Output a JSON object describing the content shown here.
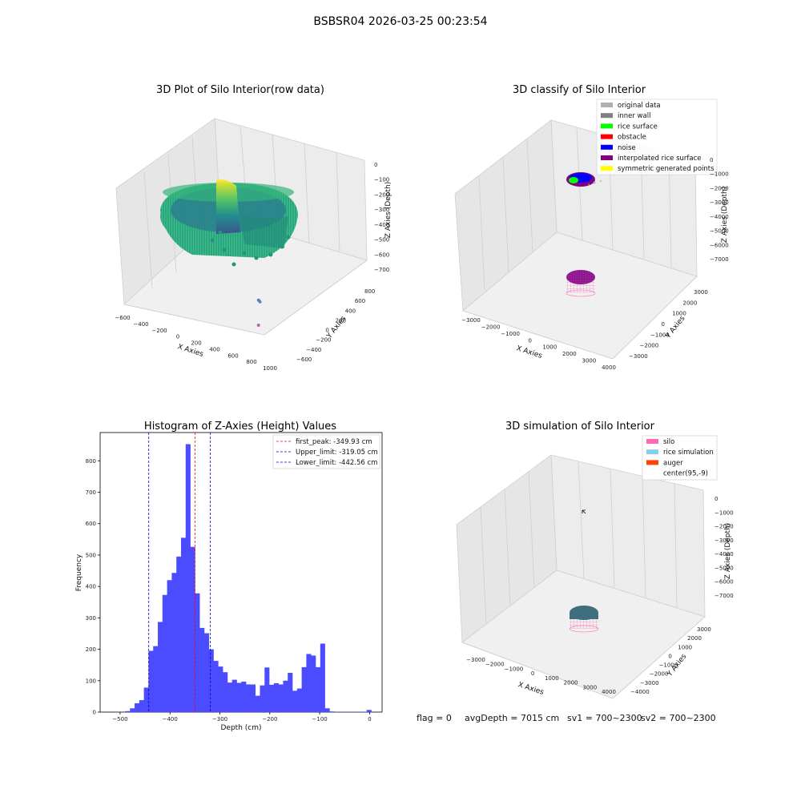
{
  "figure": {
    "suptitle": "BSBSR04 2026-03-25 00:23:54",
    "footer": {
      "flag": "flag = 0",
      "avg_depth": "avgDepth = 7015 cm",
      "sv1": "sv1 = 700~2300",
      "sv2": "sv2 = 700~2300"
    }
  },
  "colors": {
    "histogram_bar": "#4b4bff",
    "first_peak_line": "#ff0000",
    "limit_line": "#0000cc",
    "original_data": "#b0b0b0",
    "inner_wall": "#808080",
    "rice_surface": "#00ff00",
    "obstacle": "#ff0000",
    "noise": "#0000ff",
    "interpolated_rice_surface": "#800080",
    "symmetric_generated_points": "#ffff00",
    "silo": "#ff69b4",
    "rice_simulation": "#87ceeb",
    "auger": "#ff4500"
  },
  "chart_data": [
    {
      "type": "scatter",
      "projection": "3d",
      "title": "3D Plot of Silo Interior(row data)",
      "xlabel": "X Axies",
      "ylabel": "Y Axies",
      "zlabel": "Z Axies (Depth)",
      "xticks": [
        "−600",
        "−400",
        "−200",
        "0",
        "200",
        "400",
        "600",
        "800",
        "1000"
      ],
      "yticks": [
        "−600",
        "−400",
        "−200",
        "0",
        "200",
        "400",
        "600",
        "800"
      ],
      "zticks": [
        "0",
        "−100",
        "−200",
        "−300",
        "−400",
        "−500",
        "−600",
        "−700"
      ],
      "xlim": [
        -600,
        1000
      ],
      "ylim": [
        -600,
        800
      ],
      "zlim": [
        -700,
        0
      ],
      "colormap": "viridis",
      "outlier_points": [
        {
          "x": 850,
          "y": -500,
          "z": -690
        },
        {
          "x": 700,
          "y": -300,
          "z": -620
        },
        {
          "x": 600,
          "y": -200,
          "z": -660
        }
      ]
    },
    {
      "type": "scatter",
      "projection": "3d",
      "title": "3D classify of Silo Interior",
      "xlabel": "X Axies",
      "ylabel": "Y Axies",
      "zlabel": "Z Axies (Depth)",
      "xticks": [
        "−3000",
        "−2000",
        "−1000",
        "0",
        "1000",
        "2000",
        "3000",
        "4000"
      ],
      "yticks": [
        "−3000",
        "−2000",
        "−1000",
        "0",
        "1000",
        "2000",
        "3000"
      ],
      "zticks": [
        "0",
        "−1000",
        "−2000",
        "−3000",
        "−4000",
        "−5000",
        "−6000",
        "−7000"
      ],
      "xlim": [
        -3000,
        4000
      ],
      "ylim": [
        -3000,
        3000
      ],
      "zlim": [
        -7000,
        0
      ],
      "legend_position": "top-right",
      "legend": [
        {
          "label": "original data",
          "color": "#b0b0b0"
        },
        {
          "label": "inner wall",
          "color": "#808080"
        },
        {
          "label": "rice surface",
          "color": "#00ff00"
        },
        {
          "label": "obstacle",
          "color": "#ff0000"
        },
        {
          "label": "noise",
          "color": "#0000ff"
        },
        {
          "label": "interpolated rice surface",
          "color": "#800080"
        },
        {
          "label": "symmetric generated points",
          "color": "#ffff00"
        }
      ]
    },
    {
      "type": "bar",
      "title": "Histogram of Z-Axies (Height) Values",
      "xlabel": "Depth (cm)",
      "ylabel": "Frequency",
      "xlim": [
        -540,
        25
      ],
      "ylim": [
        0,
        890
      ],
      "xticks": [
        -500,
        -400,
        -300,
        -200,
        -100,
        0
      ],
      "yticks": [
        0,
        100,
        200,
        300,
        400,
        500,
        600,
        700,
        800
      ],
      "xtick_labels": [
        "−500",
        "−400",
        "−300",
        "−200",
        "−100",
        "0"
      ],
      "bin_width": 9.3,
      "bins": [
        [
          -489.5,
          3
        ],
        [
          -480.2,
          12
        ],
        [
          -470.9,
          28
        ],
        [
          -461.6,
          38
        ],
        [
          -452.3,
          78
        ],
        [
          -443.0,
          195
        ],
        [
          -433.7,
          210
        ],
        [
          -424.4,
          287
        ],
        [
          -415.1,
          373
        ],
        [
          -405.8,
          420
        ],
        [
          -396.5,
          443
        ],
        [
          -387.2,
          495
        ],
        [
          -377.9,
          555
        ],
        [
          -368.6,
          853
        ],
        [
          -359.3,
          526
        ],
        [
          -350.0,
          378
        ],
        [
          -340.7,
          268
        ],
        [
          -331.4,
          251
        ],
        [
          -322.1,
          200
        ],
        [
          -312.8,
          163
        ],
        [
          -303.5,
          145
        ],
        [
          -294.2,
          127
        ],
        [
          -284.9,
          94
        ],
        [
          -275.6,
          103
        ],
        [
          -266.3,
          93
        ],
        [
          -257.0,
          97
        ],
        [
          -247.7,
          88
        ],
        [
          -238.4,
          88
        ],
        [
          -229.1,
          52
        ],
        [
          -219.8,
          85
        ],
        [
          -210.5,
          142
        ],
        [
          -201.2,
          87
        ],
        [
          -191.9,
          92
        ],
        [
          -182.6,
          88
        ],
        [
          -173.3,
          100
        ],
        [
          -164.0,
          125
        ],
        [
          -154.7,
          68
        ],
        [
          -145.4,
          75
        ],
        [
          -136.1,
          143
        ],
        [
          -126.8,
          185
        ],
        [
          -117.5,
          180
        ],
        [
          -108.2,
          143
        ],
        [
          -98.9,
          218
        ],
        [
          -89.6,
          12
        ],
        [
          -80.3,
          2
        ],
        [
          -71.0,
          1
        ],
        [
          -61.7,
          1
        ],
        [
          -52.4,
          1
        ],
        [
          -43.1,
          1
        ],
        [
          -33.8,
          1
        ],
        [
          -24.5,
          1
        ],
        [
          -15.2,
          1
        ],
        [
          -5.9,
          7
        ]
      ],
      "vlines": [
        {
          "x": -349.93,
          "label": "first_peak: -349.93 cm",
          "color": "#ff0000"
        },
        {
          "x": -319.05,
          "label": "Upper_limit: -319.05 cm",
          "color": "#0000cc"
        },
        {
          "x": -442.56,
          "label": "Lower_limit: -442.56 cm",
          "color": "#0000cc"
        }
      ],
      "legend_position": "top-right"
    },
    {
      "type": "scatter",
      "projection": "3d",
      "title": "3D simulation of Silo Interior",
      "xlabel": "X Axies",
      "ylabel": "Y Axies",
      "zlabel": "Z Axies (Depth)",
      "xticks": [
        "−3000",
        "−2000",
        "−1000",
        "0",
        "1000",
        "2000",
        "3000",
        "4000"
      ],
      "yticks": [
        "−4000",
        "−3000",
        "−2000",
        "−1000",
        "0",
        "1000",
        "2000",
        "3000"
      ],
      "zticks": [
        "0",
        "−1000",
        "−2000",
        "−3000",
        "−4000",
        "−5000",
        "−6000",
        "−7000"
      ],
      "xlim": [
        -3000,
        4000
      ],
      "ylim": [
        -4000,
        3000
      ],
      "zlim": [
        -7000,
        0
      ],
      "legend_position": "top-right",
      "legend": [
        {
          "label": "silo",
          "color": "#ff69b4"
        },
        {
          "label": "rice simulation",
          "color": "#87ceeb"
        },
        {
          "label": "auger",
          "color": "#ff4500"
        },
        {
          "label": "center(95,-9)",
          "color": ""
        }
      ]
    }
  ]
}
